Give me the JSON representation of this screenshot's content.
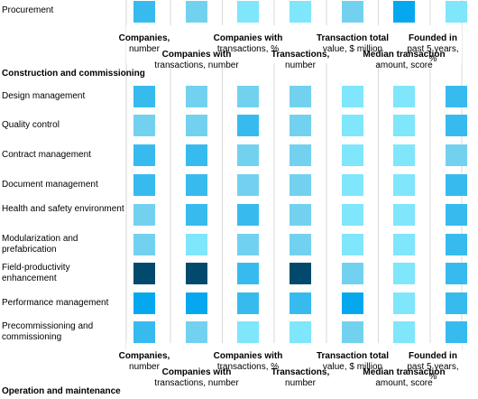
{
  "chart_data": {
    "type": "heatmap",
    "top_row": {
      "label": "Procurement",
      "values": [
        3,
        2,
        1,
        1,
        2,
        4,
        1
      ]
    },
    "sections": [
      {
        "title": "Construction and commissioning",
        "rows": [
          {
            "label": "Design management",
            "values": [
              3,
              2,
              2,
              2,
              1,
              1,
              3
            ]
          },
          {
            "label": "Quality control",
            "values": [
              2,
              2,
              3,
              2,
              1,
              1,
              3
            ]
          },
          {
            "label": "Contract management",
            "values": [
              3,
              3,
              2,
              2,
              1,
              1,
              2
            ]
          },
          {
            "label": "Document management",
            "values": [
              3,
              3,
              2,
              2,
              1,
              1,
              3
            ]
          },
          {
            "label": "Health and safety environment",
            "values": [
              2,
              3,
              3,
              2,
              1,
              1,
              3
            ]
          },
          {
            "label": "Modularization and prefabrication",
            "values": [
              2,
              1,
              2,
              2,
              1,
              1,
              3
            ]
          },
          {
            "label": "Field-productivity enhancement",
            "values": [
              5,
              5,
              3,
              5,
              2,
              1,
              3
            ]
          },
          {
            "label": "Performance management",
            "values": [
              4,
              4,
              3,
              3,
              4,
              1,
              3
            ]
          },
          {
            "label": "Precommissioning and commissioning",
            "values": [
              3,
              2,
              1,
              1,
              2,
              1,
              3
            ]
          }
        ]
      },
      {
        "title": "Operation and maintenance",
        "rows": []
      }
    ],
    "columns": [
      {
        "bold": "Companies,",
        "rest": "number",
        "level": "high"
      },
      {
        "bold": "Companies with",
        "rest": "transactions, number",
        "level": "low"
      },
      {
        "bold": "Companies with",
        "rest": "transactions, %",
        "level": "high"
      },
      {
        "bold": "Transactions,",
        "rest": "number",
        "level": "low"
      },
      {
        "bold": "Transaction total",
        "rest": "value, $ million",
        "level": "high"
      },
      {
        "bold": "Median transaction",
        "rest": "amount, score",
        "level": "low"
      },
      {
        "bold": "Founded in",
        "rest": "past 5 years,\n%",
        "level": "high"
      }
    ],
    "colors": {
      "1": "#7fe6fb",
      "2": "#73d1f0",
      "3": "#37bbee",
      "4": "#05a8ef",
      "5": "#024a6d"
    },
    "grid_line_color": "#d9d9d9"
  }
}
